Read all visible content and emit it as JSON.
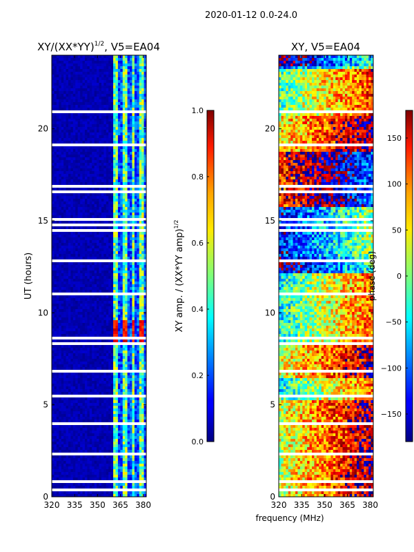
{
  "figure": {
    "suptitle": "2020-01-12 0.0-24.0"
  },
  "colors": {
    "background": "#00008f",
    "empty_row": "#ffffff"
  },
  "chart_data": [
    {
      "type": "heatmap",
      "title_prefix": "XY/(XX*YY)",
      "title_exponent": "1/2",
      "title_suffix": ", V5=EA04",
      "xlabel": "",
      "ylabel": "UT (hours)",
      "xlim": [
        320,
        382
      ],
      "ylim": [
        0,
        24
      ],
      "xticks": [
        "320",
        "335",
        "350",
        "365",
        "380"
      ],
      "yticks": [
        "0",
        "5",
        "10",
        "15",
        "20"
      ],
      "colorbar": {
        "label_prefix": "XY amp. / (XX*YY amp)",
        "label_exponent": "1/2",
        "range": [
          0.0,
          1.0
        ],
        "ticks": [
          "0.0",
          "0.2",
          "0.4",
          "0.6",
          "0.8",
          "1.0"
        ],
        "colormap": "jet"
      },
      "notes": "amplitude near 0 below ~360 MHz; elevated (0.3-0.9) in narrow channels 360-380 MHz, peaking ~0.9 around 8.5-9.5 UT"
    },
    {
      "type": "heatmap",
      "title": "XY, V5=EA04",
      "xlabel": "frequency (MHz)",
      "ylabel": "",
      "xlim": [
        320,
        382
      ],
      "ylim": [
        0,
        24
      ],
      "xticks": [
        "320",
        "335",
        "350",
        "365",
        "380"
      ],
      "yticks": [
        "0",
        "5",
        "10",
        "15",
        "20"
      ],
      "colorbar": {
        "label": "phase (deg)",
        "range": [
          -180,
          180
        ],
        "ticks": [
          "−150",
          "−100",
          "−50",
          "0",
          "50",
          "100",
          "150"
        ],
        "colormap": "jet"
      },
      "notes": "phase varies across full -180..180 range with horizontal banding in time"
    }
  ]
}
